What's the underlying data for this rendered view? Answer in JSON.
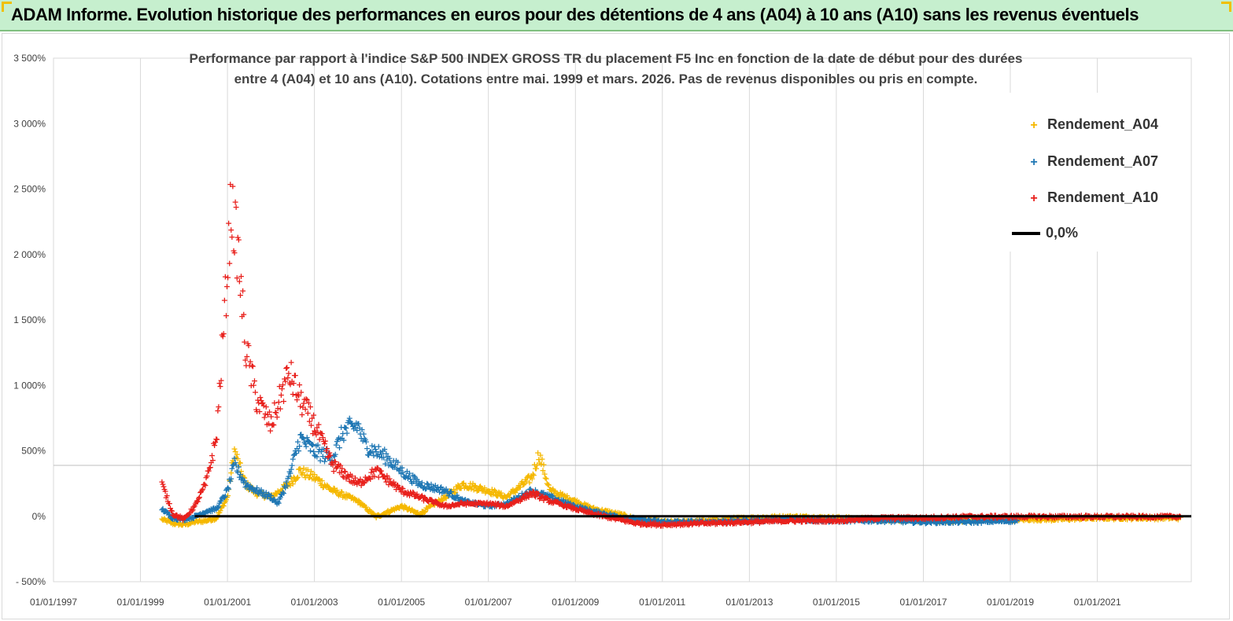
{
  "banner": {
    "title": "ADAM Informe. Evolution historique des performances en euros pour des détentions de 4 ans (A04) à 10 ans (A10) sans les revenus éventuels"
  },
  "chart_data": {
    "type": "scatter",
    "title_line1": "Performance par rapport à l'indice S&P 500 INDEX GROSS TR  du placement F5 Inc en fonction de la date de début pour des durées",
    "title_line2": "entre 4 (A04) et 10 ans (A10). Cotations entre mai. 1999 et mars. 2026. Pas de revenus disponibles ou pris en compte.",
    "x_tick_labels": [
      "01/01/1997",
      "01/01/1999",
      "01/01/2001",
      "01/01/2003",
      "01/01/2005",
      "01/01/2007",
      "01/01/2009",
      "01/01/2011",
      "01/01/2013",
      "01/01/2015",
      "01/01/2017",
      "01/01/2019",
      "01/01/2021"
    ],
    "y_tick_labels": [
      "3 500%",
      "3 000%",
      "2 500%",
      "2 000%",
      "1 500%",
      "1 000%",
      "500%",
      "0%",
      "- 500%"
    ],
    "xlim": [
      "1997-01-01",
      "2023-03-01"
    ],
    "ylim": [
      -500,
      3500
    ],
    "legend_position": "top-right",
    "series": [
      {
        "name": "Rendement_A04",
        "color": "#f5b800",
        "x_start": "1999-07-01",
        "x_end": "2022-12-01",
        "points": [
          [
            "1999-07-01",
            -20
          ],
          [
            "1999-10-01",
            -50
          ],
          [
            "2000-01-01",
            -60
          ],
          [
            "2000-04-01",
            -40
          ],
          [
            "2000-07-01",
            -30
          ],
          [
            "2000-10-01",
            -10
          ],
          [
            "2001-01-01",
            150
          ],
          [
            "2001-03-01",
            500
          ],
          [
            "2001-06-01",
            250
          ],
          [
            "2001-09-01",
            180
          ],
          [
            "2002-01-01",
            150
          ],
          [
            "2002-06-01",
            250
          ],
          [
            "2002-09-01",
            350
          ],
          [
            "2003-01-01",
            300
          ],
          [
            "2003-06-01",
            200
          ],
          [
            "2004-01-01",
            120
          ],
          [
            "2004-06-01",
            0
          ],
          [
            "2005-01-01",
            80
          ],
          [
            "2005-06-01",
            20
          ],
          [
            "2006-01-01",
            150
          ],
          [
            "2006-06-01",
            250
          ],
          [
            "2007-01-01",
            200
          ],
          [
            "2007-06-01",
            150
          ],
          [
            "2008-01-01",
            300
          ],
          [
            "2008-03-01",
            480
          ],
          [
            "2008-06-01",
            200
          ],
          [
            "2009-01-01",
            120
          ],
          [
            "2009-06-01",
            60
          ],
          [
            "2010-01-01",
            20
          ],
          [
            "2010-06-01",
            -20
          ],
          [
            "2011-01-01",
            -40
          ],
          [
            "2011-06-01",
            -40
          ],
          [
            "2012-01-01",
            -30
          ],
          [
            "2013-01-01",
            -10
          ],
          [
            "2014-01-01",
            0
          ],
          [
            "2015-01-01",
            -10
          ],
          [
            "2016-01-01",
            -20
          ],
          [
            "2017-01-01",
            -30
          ],
          [
            "2018-01-01",
            -30
          ],
          [
            "2019-01-01",
            -20
          ],
          [
            "2020-01-01",
            -20
          ],
          [
            "2021-01-01",
            -10
          ],
          [
            "2022-01-01",
            -10
          ],
          [
            "2022-12-01",
            -10
          ]
        ]
      },
      {
        "name": "Rendement_A07",
        "color": "#1f77b4",
        "x_start": "1999-07-01",
        "x_end": "2019-03-01",
        "points": [
          [
            "1999-07-01",
            60
          ],
          [
            "1999-10-01",
            -10
          ],
          [
            "2000-01-01",
            -20
          ],
          [
            "2000-04-01",
            0
          ],
          [
            "2000-07-01",
            40
          ],
          [
            "2000-10-01",
            60
          ],
          [
            "2001-01-01",
            200
          ],
          [
            "2001-03-01",
            400
          ],
          [
            "2001-06-01",
            250
          ],
          [
            "2001-09-01",
            200
          ],
          [
            "2002-01-01",
            150
          ],
          [
            "2002-03-01",
            100
          ],
          [
            "2002-06-01",
            300
          ],
          [
            "2002-09-01",
            600
          ],
          [
            "2003-01-01",
            500
          ],
          [
            "2003-06-01",
            450
          ],
          [
            "2003-09-01",
            650
          ],
          [
            "2004-01-01",
            700
          ],
          [
            "2004-03-01",
            550
          ],
          [
            "2004-09-01",
            450
          ],
          [
            "2005-01-01",
            350
          ],
          [
            "2005-06-01",
            250
          ],
          [
            "2006-01-01",
            200
          ],
          [
            "2006-06-01",
            120
          ],
          [
            "2007-01-01",
            80
          ],
          [
            "2007-06-01",
            100
          ],
          [
            "2008-01-01",
            200
          ],
          [
            "2008-06-01",
            150
          ],
          [
            "2009-01-01",
            80
          ],
          [
            "2009-06-01",
            40
          ],
          [
            "2010-01-01",
            0
          ],
          [
            "2010-06-01",
            -20
          ],
          [
            "2011-01-01",
            -40
          ],
          [
            "2012-01-01",
            -40
          ],
          [
            "2013-01-01",
            -30
          ],
          [
            "2014-01-01",
            -20
          ],
          [
            "2015-01-01",
            -30
          ],
          [
            "2016-01-01",
            -30
          ],
          [
            "2017-01-01",
            -40
          ],
          [
            "2018-01-01",
            -40
          ],
          [
            "2019-03-01",
            -30
          ]
        ]
      },
      {
        "name": "Rendement_A10",
        "color": "#e8201c",
        "x_start": "1999-07-01",
        "x_end": "2022-12-01",
        "points": [
          [
            "1999-07-01",
            250
          ],
          [
            "1999-10-01",
            20
          ],
          [
            "2000-01-01",
            -20
          ],
          [
            "2000-04-01",
            80
          ],
          [
            "2000-07-01",
            250
          ],
          [
            "2000-10-01",
            600
          ],
          [
            "2001-01-01",
            1900
          ],
          [
            "2001-02-01",
            2400
          ],
          [
            "2001-04-01",
            2000
          ],
          [
            "2001-06-01",
            1300
          ],
          [
            "2001-09-01",
            900
          ],
          [
            "2002-01-01",
            700
          ],
          [
            "2002-06-01",
            1100
          ],
          [
            "2002-09-01",
            900
          ],
          [
            "2003-01-01",
            700
          ],
          [
            "2003-06-01",
            400
          ],
          [
            "2004-01-01",
            250
          ],
          [
            "2004-06-01",
            350
          ],
          [
            "2005-01-01",
            200
          ],
          [
            "2005-06-01",
            150
          ],
          [
            "2006-01-01",
            80
          ],
          [
            "2006-06-01",
            100
          ],
          [
            "2007-01-01",
            100
          ],
          [
            "2007-06-01",
            80
          ],
          [
            "2008-01-01",
            180
          ],
          [
            "2008-06-01",
            120
          ],
          [
            "2009-01-01",
            60
          ],
          [
            "2009-06-01",
            20
          ],
          [
            "2010-01-01",
            -20
          ],
          [
            "2010-06-01",
            -50
          ],
          [
            "2011-01-01",
            -60
          ],
          [
            "2012-01-01",
            -50
          ],
          [
            "2013-01-01",
            -40
          ],
          [
            "2014-01-01",
            -30
          ],
          [
            "2015-01-01",
            -30
          ],
          [
            "2016-01-01",
            -10
          ],
          [
            "2017-01-01",
            -10
          ],
          [
            "2018-01-01",
            0
          ],
          [
            "2019-01-01",
            0
          ],
          [
            "2020-01-01",
            0
          ],
          [
            "2021-01-01",
            0
          ],
          [
            "2022-01-01",
            0
          ],
          [
            "2022-12-01",
            0
          ]
        ]
      }
    ],
    "reference_line": {
      "name": "0,0%",
      "value": 0,
      "color": "#000000"
    }
  }
}
